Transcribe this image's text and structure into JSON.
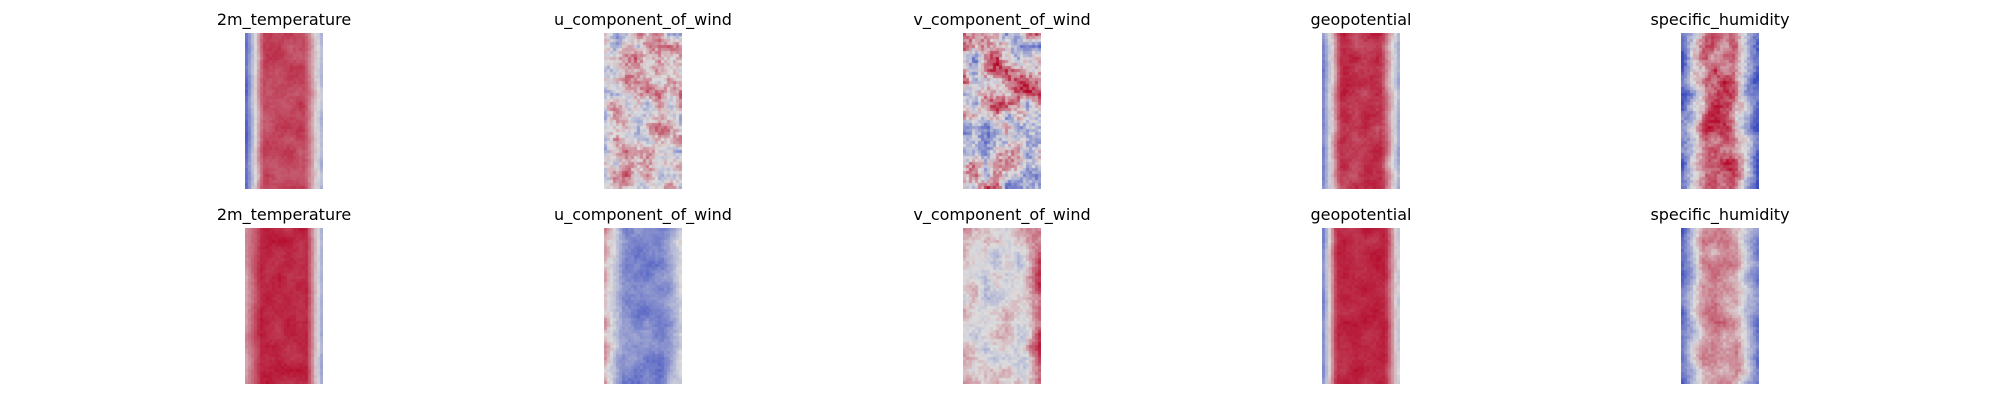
{
  "colormap": {
    "name": "coolwarm",
    "low": "#3b4cc0",
    "mid": "#dddddd",
    "high": "#b40426"
  },
  "chart_data": [
    {
      "type": "heatmap",
      "title": "2m_temperature",
      "row": 1,
      "col": 1,
      "axes": "off",
      "pattern": {
        "left_edge": -0.75,
        "center": 0.7,
        "right_edge": -0.25,
        "center_width": 0.55,
        "noise": 0.12
      }
    },
    {
      "type": "heatmap",
      "title": "u_component_of_wind",
      "row": 1,
      "col": 2,
      "axes": "off",
      "pattern": {
        "left_edge": 0.0,
        "center": 0.1,
        "right_edge": 0.0,
        "center_width": 0.5,
        "noise": 0.55
      }
    },
    {
      "type": "heatmap",
      "title": "v_component_of_wind",
      "row": 1,
      "col": 3,
      "axes": "off",
      "pattern": {
        "left_edge": 0.0,
        "center": 0.05,
        "right_edge": 0.0,
        "center_width": 0.5,
        "noise": 0.75
      }
    },
    {
      "type": "heatmap",
      "title": "geopotential",
      "row": 1,
      "col": 4,
      "axes": "off",
      "pattern": {
        "left_edge": -0.55,
        "center": 0.75,
        "right_edge": -0.3,
        "center_width": 0.55,
        "noise": 0.15
      }
    },
    {
      "type": "heatmap",
      "title": "specific_humidity",
      "row": 1,
      "col": 5,
      "axes": "off",
      "pattern": {
        "left_edge": -0.9,
        "center": 0.6,
        "right_edge": -0.85,
        "center_width": 0.35,
        "noise": 0.4
      }
    },
    {
      "type": "heatmap",
      "title": "2m_temperature",
      "row": 2,
      "col": 1,
      "axes": "off",
      "pattern": {
        "left_edge": 0.3,
        "center": 0.85,
        "right_edge": -0.3,
        "center_width": 0.6,
        "noise": 0.1
      }
    },
    {
      "type": "heatmap",
      "title": "u_component_of_wind",
      "row": 2,
      "col": 2,
      "axes": "off",
      "pattern": {
        "left_edge": 0.2,
        "center": -0.6,
        "right_edge": -0.1,
        "center_width": 0.5,
        "noise": 0.2
      }
    },
    {
      "type": "heatmap",
      "title": "v_component_of_wind",
      "row": 2,
      "col": 3,
      "axes": "off",
      "pattern": {
        "left_edge": 0.1,
        "center": 0.0,
        "right_edge": 0.6,
        "center_width": 0.6,
        "noise": 0.3
      }
    },
    {
      "type": "heatmap",
      "title": "geopotential",
      "row": 2,
      "col": 4,
      "axes": "off",
      "pattern": {
        "left_edge": -0.55,
        "center": 0.85,
        "right_edge": -0.1,
        "center_width": 0.65,
        "noise": 0.1
      }
    },
    {
      "type": "heatmap",
      "title": "specific_humidity",
      "row": 2,
      "col": 5,
      "axes": "off",
      "pattern": {
        "left_edge": -0.7,
        "center": 0.35,
        "right_edge": -0.65,
        "center_width": 0.45,
        "noise": 0.25
      }
    }
  ]
}
